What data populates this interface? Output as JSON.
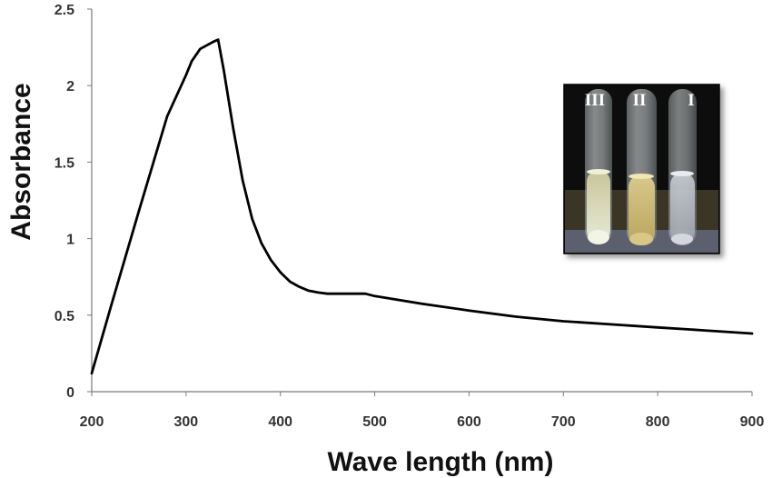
{
  "chart_data": {
    "type": "line",
    "xlabel": "Wave length (nm)",
    "ylabel": "Absorbance",
    "xlim": [
      200,
      900
    ],
    "ylim": [
      0,
      2.5
    ],
    "x_ticks": [
      "200",
      "300",
      "400",
      "500",
      "600",
      "700",
      "800",
      "900"
    ],
    "y_ticks": [
      "0",
      "0.5",
      "1",
      "1.5",
      "2",
      "2.5"
    ],
    "grid": false,
    "legend": "none",
    "series": [
      {
        "color": "#000000",
        "x": [
          200,
          220,
          250,
          280,
          300,
          306,
          315,
          330,
          334,
          340,
          350,
          360,
          370,
          380,
          390,
          400,
          410,
          420,
          430,
          440,
          450,
          470,
          490,
          500,
          550,
          600,
          650,
          700,
          750,
          800,
          850,
          900
        ],
        "y": [
          0.12,
          0.55,
          1.18,
          1.8,
          2.07,
          2.16,
          2.24,
          2.29,
          2.3,
          2.1,
          1.72,
          1.38,
          1.13,
          0.97,
          0.86,
          0.78,
          0.72,
          0.685,
          0.66,
          0.648,
          0.64,
          0.64,
          0.64,
          0.625,
          0.575,
          0.53,
          0.49,
          0.46,
          0.44,
          0.42,
          0.4,
          0.38
        ]
      }
    ]
  },
  "inset": {
    "tube_labels": [
      "III",
      "II",
      "I"
    ]
  }
}
